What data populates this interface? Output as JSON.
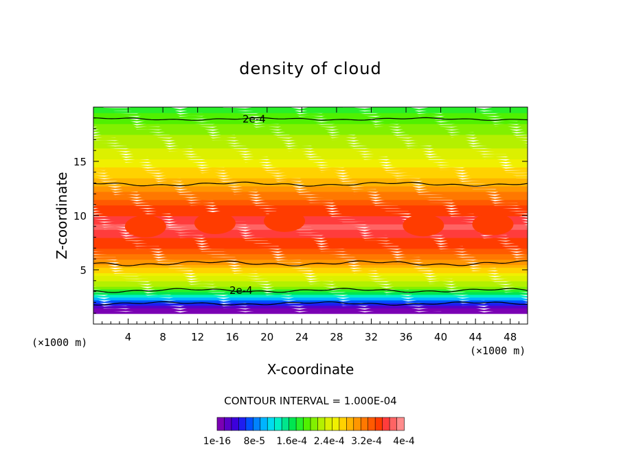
{
  "chart_data": {
    "type": "heatmap",
    "title": "density of cloud",
    "xlabel": "X-coordinate",
    "ylabel": "Z-coordinate",
    "x_unit_label": "(×1000 m)",
    "xlim": [
      0,
      50
    ],
    "ylim": [
      0,
      20
    ],
    "x_ticks": [
      4,
      8,
      12,
      16,
      20,
      24,
      28,
      32,
      36,
      40,
      44,
      48
    ],
    "y_ticks": [
      5,
      10,
      15
    ],
    "contour_interval": "CONTOUR INTERVAL = 1.000E-04",
    "contour_labels": [
      "2e-4",
      "2e-4"
    ],
    "colorbar_labels": [
      "1e-16",
      "8e-5",
      "1.6e-4",
      "2.4e-4",
      "3.2e-4",
      "4e-4"
    ],
    "colorbar_colors": [
      "#7b00b4",
      "#5a00c8",
      "#3c00dc",
      "#1e1ef0",
      "#0050ff",
      "#0082ff",
      "#00b4ff",
      "#00dcf0",
      "#00f0c8",
      "#00e68c",
      "#00e650",
      "#28f028",
      "#50f000",
      "#82f000",
      "#b4f000",
      "#dcf000",
      "#f0f000",
      "#ffd200",
      "#ffb400",
      "#ff9600",
      "#ff7800",
      "#ff5a00",
      "#ff3c00",
      "#ff3c3c",
      "#ff6464",
      "#ff8c8c"
    ],
    "profile": [
      {
        "z": 1.0,
        "value": 1e-16
      },
      {
        "z": 1.5,
        "value": 2e-05
      },
      {
        "z": 2.0,
        "value": 6e-05
      },
      {
        "z": 2.5,
        "value": 0.00012
      },
      {
        "z": 3.0,
        "value": 0.00018
      },
      {
        "z": 3.5,
        "value": 0.00022
      },
      {
        "z": 4.5,
        "value": 0.00026
      },
      {
        "z": 5.5,
        "value": 0.0003
      },
      {
        "z": 7.0,
        "value": 0.00035
      },
      {
        "z": 9.0,
        "value": 0.00039
      },
      {
        "z": 11.0,
        "value": 0.00035
      },
      {
        "z": 13.0,
        "value": 0.0003
      },
      {
        "z": 15.0,
        "value": 0.00026
      },
      {
        "z": 17.0,
        "value": 0.00023
      },
      {
        "z": 19.0,
        "value": 0.0002
      },
      {
        "z": 20.0,
        "value": 0.00018
      }
    ]
  }
}
